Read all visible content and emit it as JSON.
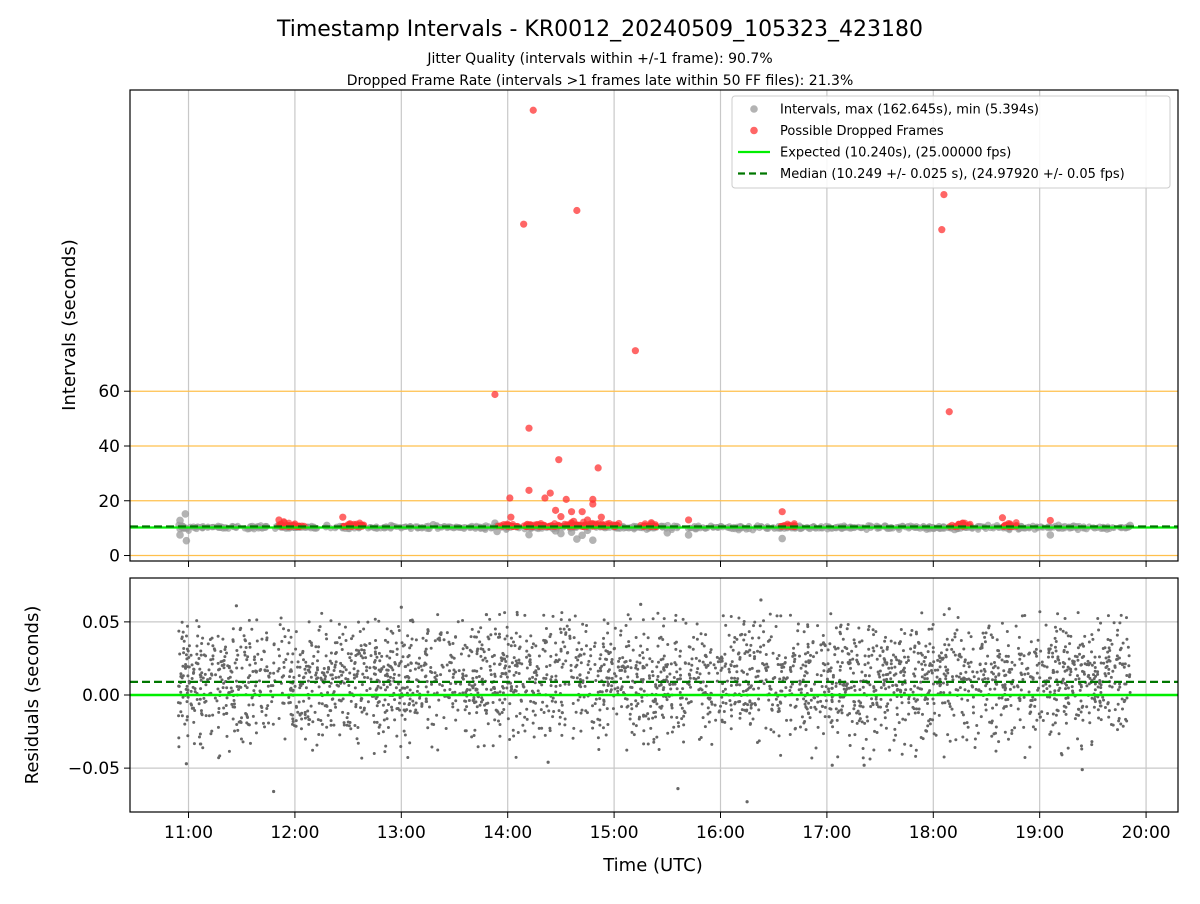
{
  "figure": {
    "title": "Timestamp Intervals - KR0012_20240509_105323_423180",
    "subtitle_1": "Jitter Quality (intervals within +/-1 frame): 90.7%",
    "subtitle_2": "Dropped Frame Rate (intervals >1 frames late within 50 FF files): 21.3%"
  },
  "chart_data": [
    {
      "type": "scatter",
      "panel": "top",
      "ylabel": "Intervals (seconds)",
      "xlim_hours": [
        10.45,
        20.3
      ],
      "ylim": [
        -2,
        170
      ],
      "yticks": [
        0,
        20,
        40,
        60
      ],
      "grid": "on",
      "horizontal_lines_orange": [
        0,
        20,
        40,
        60
      ],
      "legend": {
        "placement": "top-right",
        "entries": [
          {
            "label": "Intervals, max (162.645s), min (5.394s)",
            "kind": "marker",
            "color": "#999999"
          },
          {
            "label": "Possible Dropped Frames",
            "kind": "marker",
            "color": "#ff3333"
          },
          {
            "label": "Expected (10.240s), (25.00000 fps)",
            "kind": "line",
            "color": "#00ee00"
          },
          {
            "label": "Median (10.249 +/- 0.025 s), (24.97920 +/- 0.05 fps)",
            "kind": "dashed",
            "color": "#007700"
          }
        ]
      },
      "series": [
        {
          "name": "Intervals, max (162.645s), min (5.394s)",
          "color": "#999999",
          "points": [
            [
              10.92,
              12.8
            ],
            [
              10.92,
              7.5
            ],
            [
              10.95,
              10.5
            ],
            [
              10.97,
              15.2
            ],
            [
              10.98,
              5.4
            ],
            [
              11.3,
              10.4
            ],
            [
              11.6,
              10.6
            ],
            [
              12.3,
              11.0
            ],
            [
              13.3,
              11.2
            ],
            [
              13.9,
              8.8
            ],
            [
              13.88,
              11.8
            ],
            [
              14.2,
              7.6
            ],
            [
              14.45,
              9.0
            ],
            [
              14.5,
              8.0
            ],
            [
              14.6,
              8.5
            ],
            [
              14.65,
              6.0
            ],
            [
              14.7,
              7.4
            ],
            [
              14.75,
              9.2
            ],
            [
              14.8,
              5.6
            ],
            [
              15.5,
              8.3
            ],
            [
              15.7,
              7.5
            ],
            [
              16.58,
              6.2
            ],
            [
              18.2,
              9.5
            ],
            [
              19.1,
              7.5
            ],
            [
              19.85,
              11.0
            ]
          ]
        },
        {
          "name": "Possible Dropped Frames",
          "color": "#ff3333",
          "points": [
            [
              11.85,
              13.0
            ],
            [
              11.87,
              11.2
            ],
            [
              11.9,
              12.0
            ],
            [
              11.95,
              10.8
            ],
            [
              12.0,
              11.5
            ],
            [
              12.45,
              14.0
            ],
            [
              12.5,
              11.2
            ],
            [
              13.88,
              58.8
            ],
            [
              14.02,
              21.0
            ],
            [
              14.03,
              14.0
            ],
            [
              14.15,
              121.0
            ],
            [
              14.2,
              46.5
            ],
            [
              14.2,
              23.8
            ],
            [
              14.24,
              162.6
            ],
            [
              14.35,
              21.0
            ],
            [
              14.4,
              22.8
            ],
            [
              14.45,
              16.5
            ],
            [
              14.48,
              35.0
            ],
            [
              14.5,
              14.2
            ],
            [
              14.55,
              20.5
            ],
            [
              14.6,
              16.0
            ],
            [
              14.62,
              12.5
            ],
            [
              14.65,
              126.0
            ],
            [
              14.7,
              16.0
            ],
            [
              14.75,
              13.0
            ],
            [
              14.8,
              18.8
            ],
            [
              14.8,
              20.5
            ],
            [
              14.85,
              32.0
            ],
            [
              14.88,
              14.0
            ],
            [
              15.2,
              74.8
            ],
            [
              15.35,
              12.0
            ],
            [
              15.7,
              13.0
            ],
            [
              16.58,
              16.0
            ],
            [
              18.08,
              119.0
            ],
            [
              18.1,
              131.8
            ],
            [
              18.15,
              52.5
            ],
            [
              18.65,
              13.8
            ],
            [
              19.1,
              12.8
            ]
          ],
          "dense_clusters_at_median": [
            [
              11.85,
              12.1
            ],
            [
              12.45,
              12.65
            ],
            [
              13.9,
              15.05
            ],
            [
              15.25,
              15.4
            ],
            [
              16.55,
              16.7
            ],
            [
              18.15,
              18.35
            ],
            [
              18.65,
              18.8
            ]
          ]
        },
        {
          "name": "Expected (10.240s), (25.00000 fps)",
          "kind": "hline",
          "y": 10.24,
          "color": "#00ee00"
        },
        {
          "name": "Median (10.249 +/- 0.025 s), (24.97920 +/- 0.05 fps)",
          "kind": "hline",
          "y": 10.249,
          "color": "#007700"
        }
      ]
    },
    {
      "type": "scatter",
      "panel": "bottom",
      "ylabel": "Residuals (seconds)",
      "xlabel": "Time (UTC)",
      "xlim_hours": [
        10.45,
        20.3
      ],
      "xticks": [
        "11:00",
        "12:00",
        "13:00",
        "14:00",
        "15:00",
        "16:00",
        "17:00",
        "18:00",
        "19:00",
        "20:00"
      ],
      "ylim": [
        -0.08,
        0.08
      ],
      "yticks": [
        "0.05",
        "0.00",
        "−0.05"
      ],
      "grid": "on",
      "point_color": "#666666",
      "residual_spread": {
        "x_range_hours": [
          10.9,
          19.85
        ],
        "typical_range": [
          -0.03,
          0.05
        ],
        "point_count": 3000
      },
      "outliers": [
        [
          10.98,
          -0.047
        ],
        [
          11.45,
          0.061
        ],
        [
          11.8,
          -0.066
        ],
        [
          13.0,
          0.06
        ],
        [
          13.8,
          0.055
        ],
        [
          14.38,
          -0.046
        ],
        [
          15.25,
          0.062
        ],
        [
          15.6,
          -0.064
        ],
        [
          16.25,
          -0.073
        ],
        [
          16.38,
          0.065
        ],
        [
          17.05,
          -0.048
        ],
        [
          17.35,
          -0.048
        ],
        [
          18.15,
          0.059
        ],
        [
          19.4,
          -0.051
        ]
      ],
      "expected_residual": 0.0,
      "median_residual": 0.009
    }
  ]
}
